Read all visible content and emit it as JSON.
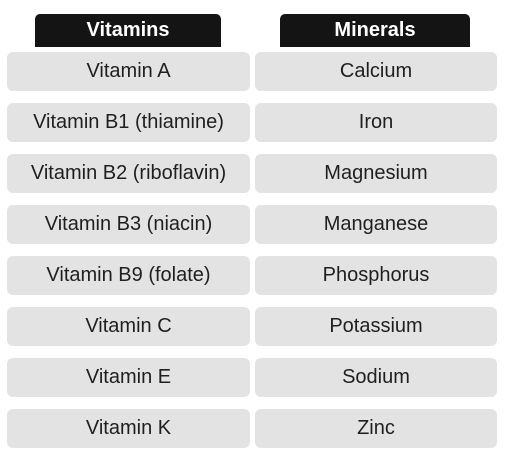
{
  "headers": {
    "vitamins": "Vitamins",
    "minerals": "Minerals"
  },
  "rows": [
    {
      "vitamin": "Vitamin A",
      "mineral": "Calcium"
    },
    {
      "vitamin": "Vitamin B1 (thiamine)",
      "mineral": "Iron"
    },
    {
      "vitamin": "Vitamin B2 (riboflavin)",
      "mineral": "Magnesium"
    },
    {
      "vitamin": "Vitamin B3 (niacin)",
      "mineral": "Manganese"
    },
    {
      "vitamin": "Vitamin B9 (folate)",
      "mineral": "Phosphorus"
    },
    {
      "vitamin": "Vitamin C",
      "mineral": "Potassium"
    },
    {
      "vitamin": "Vitamin E",
      "mineral": "Sodium"
    },
    {
      "vitamin": "Vitamin K",
      "mineral": "Zinc"
    }
  ],
  "colors": {
    "header_bg": "#141414",
    "header_text": "#ffffff",
    "cell_bg": "#e3e3e3",
    "cell_text": "#1f1f1f"
  }
}
